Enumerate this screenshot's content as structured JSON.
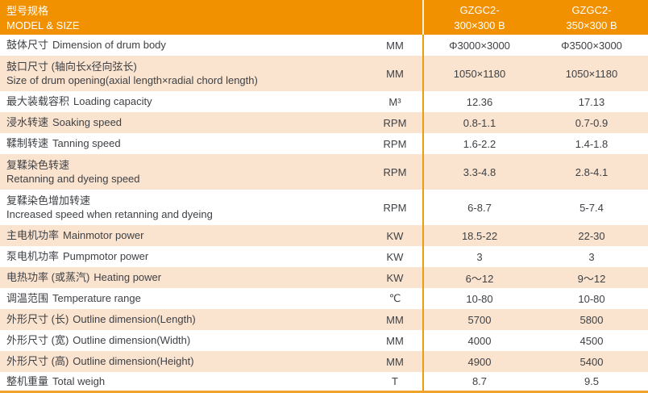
{
  "colors": {
    "header_bg": "#F29100",
    "row_alt_bg": "#FAE3CF",
    "row_bg": "#FFFFFF",
    "divider": "#EA9D0D",
    "bottom_bar": "#F0A32A",
    "header_text": "#FFFFFF",
    "body_text": "#3E4145"
  },
  "header": {
    "title_zh": "型号规格",
    "title_en": "MODEL & SIZE",
    "models": [
      {
        "line1": "GZGC2-",
        "line2": "300×300 B"
      },
      {
        "line1": "GZGC2-",
        "line2": "350×300 B"
      }
    ]
  },
  "rows": [
    {
      "zh": "鼓体尺寸",
      "en": "Dimension of drum body",
      "unit": "MM",
      "v1": "Φ3000×3000",
      "v2": "Φ3500×3000",
      "two_line": false
    },
    {
      "zh": "鼓口尺寸 (轴向长x径向弦长)",
      "en": "Size of drum opening(axial length×radial chord length)",
      "unit": "MM",
      "v1": "1050×1180",
      "v2": "1050×1180",
      "two_line": true
    },
    {
      "zh": "最大装载容积",
      "en": "Loading capacity",
      "unit": "M³",
      "v1": "12.36",
      "v2": "17.13",
      "two_line": false
    },
    {
      "zh": "浸水转速",
      "en": "Soaking speed",
      "unit": "RPM",
      "v1": "0.8-1.1",
      "v2": "0.7-0.9",
      "two_line": false
    },
    {
      "zh": "鞣制转速",
      "en": "Tanning speed",
      "unit": "RPM",
      "v1": "1.6-2.2",
      "v2": "1.4-1.8",
      "two_line": false
    },
    {
      "zh": "复鞣染色转速",
      "en": "Retanning and dyeing speed",
      "unit": "RPM",
      "v1": "3.3-4.8",
      "v2": "2.8-4.1",
      "two_line": true
    },
    {
      "zh": "复鞣染色增加转速",
      "en": "Increased speed when retanning and dyeing",
      "unit": "RPM",
      "v1": "6-8.7",
      "v2": "5-7.4",
      "two_line": true
    },
    {
      "zh": "主电机功率",
      "en": "Mainmotor power",
      "unit": "KW",
      "v1": "18.5-22",
      "v2": "22-30",
      "two_line": false
    },
    {
      "zh": "泵电机功率",
      "en": "Pumpmotor power",
      "unit": "KW",
      "v1": "3",
      "v2": "3",
      "two_line": false
    },
    {
      "zh": "电热功率 (或蒸汽)",
      "en": "Heating power",
      "unit": "KW",
      "v1": "6～12",
      "v2": "9～12",
      "two_line": false
    },
    {
      "zh": "调温范围",
      "en": "Temperature range",
      "unit": "℃",
      "v1": "10-80",
      "v2": "10-80",
      "two_line": false
    },
    {
      "zh": "外形尺寸 (长)",
      "en": "Outline dimension(Length)",
      "unit": "MM",
      "v1": "5700",
      "v2": "5800",
      "two_line": false
    },
    {
      "zh": "外形尺寸 (宽)",
      "en": "Outline dimension(Width)",
      "unit": "MM",
      "v1": "4000",
      "v2": "4500",
      "two_line": false
    },
    {
      "zh": "外形尺寸 (高)",
      "en": "Outline dimension(Height)",
      "unit": "MM",
      "v1": "4900",
      "v2": "5400",
      "two_line": false
    },
    {
      "zh": "整机重量",
      "en": "Total weigh",
      "unit": "T",
      "v1": "8.7",
      "v2": "9.5",
      "two_line": false
    }
  ]
}
